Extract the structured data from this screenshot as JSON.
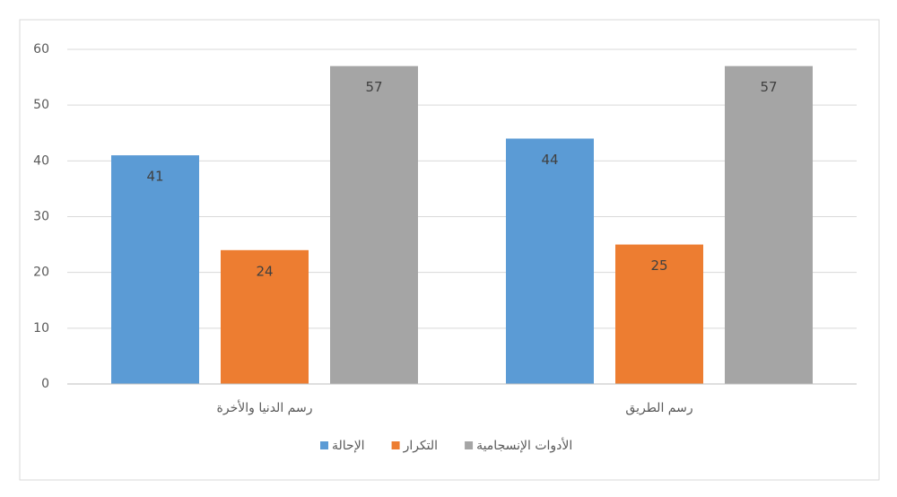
{
  "chart_data": {
    "type": "bar",
    "categories": [
      "رسم الدنيا والأخرة",
      "رسم الطريق"
    ],
    "series": [
      {
        "name": "الإحالة",
        "color": "#5b9bd5",
        "values": [
          41,
          44
        ]
      },
      {
        "name": "التكرار",
        "color": "#ed7d31",
        "values": [
          24,
          25
        ]
      },
      {
        "name": "الأدوات الإنسجامية",
        "color": "#a5a5a5",
        "values": [
          57,
          57
        ]
      }
    ],
    "ylim": [
      0,
      60
    ],
    "yticks": [
      0,
      10,
      20,
      30,
      40,
      50,
      60
    ],
    "grid": true,
    "legend": "bottom"
  }
}
